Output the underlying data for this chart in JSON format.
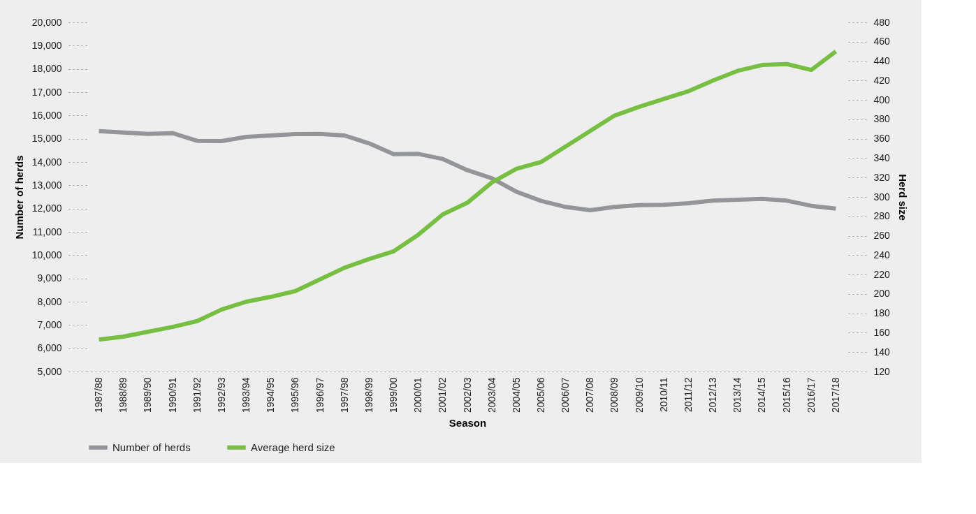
{
  "chart_data": {
    "type": "line",
    "xlabel": "Season",
    "ylabel": "Number of herds",
    "y2label": "Herd size",
    "categories": [
      "1987/88",
      "1988/89",
      "1989/90",
      "1990/91",
      "1991/92",
      "1992/93",
      "1993/94",
      "1994/95",
      "1995/96",
      "1996/97",
      "1997/98",
      "1998/99",
      "1999/00",
      "2000/01",
      "2001/02",
      "2002/03",
      "2003/04",
      "2004/05",
      "2005/06",
      "2006/07",
      "2007/08",
      "2008/09",
      "2009/10",
      "2010/11",
      "2011/12",
      "2012/13",
      "2013/14",
      "2014/15",
      "2015/16",
      "2016/17",
      "2017/18"
    ],
    "series": [
      {
        "name": "Number of herds",
        "color": "#939598",
        "values": [
          15330,
          15270,
          15210,
          15240,
          14910,
          14900,
          15080,
          15140,
          15200,
          15210,
          15140,
          14800,
          14340,
          14350,
          14130,
          13650,
          13300,
          12720,
          12330,
          12070,
          11930,
          12070,
          12150,
          12160,
          12230,
          12340,
          12380,
          12420,
          12340,
          12120,
          12000
        ]
      },
      {
        "name": "Average herd size",
        "color": "#77bf43",
        "axis": "y2",
        "values": [
          153,
          156,
          161,
          166,
          172,
          184,
          192,
          197,
          203,
          215,
          227,
          236,
          244,
          261,
          282,
          294,
          315,
          329,
          336,
          352,
          368,
          384,
          393,
          401,
          409,
          420,
          430,
          436,
          437,
          431,
          450
        ]
      }
    ],
    "ylim": [
      5000,
      20000
    ],
    "yticks": [
      {
        "value": 5000,
        "label": "5,000"
      },
      {
        "value": 6000,
        "label": "6,000"
      },
      {
        "value": 7000,
        "label": "7,000"
      },
      {
        "value": 8000,
        "label": "8,000"
      },
      {
        "value": 9000,
        "label": "9,000"
      },
      {
        "value": 10000,
        "label": "10,000"
      },
      {
        "value": 11000,
        "label": "11,000"
      },
      {
        "value": 12000,
        "label": "12,000"
      },
      {
        "value": 13000,
        "label": "13,000"
      },
      {
        "value": 14000,
        "label": "14,000"
      },
      {
        "value": 15000,
        "label": "15,000"
      },
      {
        "value": 16000,
        "label": "16,000"
      },
      {
        "value": 17000,
        "label": "17,000"
      },
      {
        "value": 18000,
        "label": "18,000"
      },
      {
        "value": 19000,
        "label": "19,000"
      },
      {
        "value": 20000,
        "label": "20,000"
      }
    ],
    "y2lim": [
      120,
      480
    ],
    "y2ticks": [
      120,
      140,
      160,
      180,
      200,
      220,
      240,
      260,
      280,
      300,
      320,
      340,
      360,
      380,
      400,
      420,
      440,
      460,
      480
    ],
    "grid": false,
    "legend": "bottom",
    "marker": "none",
    "line_style": "solid"
  }
}
